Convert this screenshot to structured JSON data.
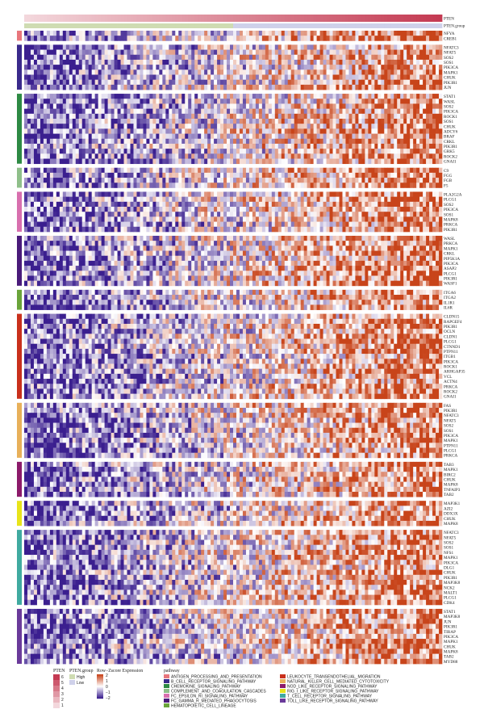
{
  "chart_data": {
    "type": "heatmap",
    "annotations": {
      "top_labels": [
        "PTEN",
        "PTEN.group"
      ],
      "pten_colors": [
        "#f3d7dc",
        "#c43a52"
      ],
      "group_colors": {
        "High": "#cfdcb2",
        "Low": "#cfd1ea"
      },
      "group_split_fraction": 0.5
    },
    "color_scale": {
      "low": "#3b1f8f",
      "mid": "#ffffff",
      "high": "#c8441a",
      "range": [
        -2,
        2
      ]
    },
    "blocks": [
      {
        "pathway": "ANTIGEN_PROCESSING_AND_PRESENTATION",
        "color": "#e8767c",
        "genes": [
          "NFYA",
          "CREB1"
        ]
      },
      {
        "pathway": "B_CELL_RECEPTOR_SIGNALING_PATHWAY",
        "color": "#3a2a8c",
        "genes": [
          "NFATC3",
          "NFAT5",
          "SOS2",
          "SOS1",
          "PIK3CA",
          "MAPK1",
          "CHUK",
          "PIK3R1",
          "JUN"
        ]
      },
      {
        "pathway": "CHEMOKINE_SIGNALING_PATHWAY",
        "color": "#2e8a44",
        "genes": [
          "STAT1",
          "WASL",
          "SOS2",
          "PIK3CA",
          "ROCK1",
          "SOS1",
          "CHUK",
          "ADCY6",
          "BRAF",
          "CRKL",
          "PIK3R1",
          "GRK5",
          "ROCK2",
          "GNAI1"
        ]
      },
      {
        "pathway": "COMPLEMENT_AND_COAGULATION_CASCADES",
        "color": "#8fbf8a",
        "genes": [
          "C9",
          "FGG",
          "FGB",
          "F5"
        ]
      },
      {
        "pathway": "FC_EPSILON_RI_SIGNALING_PATHWAY",
        "color": "#d86fae",
        "genes": [
          "PLA2G2A",
          "PLCG1",
          "SOS2",
          "PIK3CA",
          "SOS1",
          "MAPK8",
          "PRKCA",
          "PIK3R1"
        ]
      },
      {
        "pathway": "FC_GAMMA_R_MEDIATED_PHAGOCYTOSIS",
        "color": "#4a1a7a",
        "genes": [
          "WASL",
          "PRKCA",
          "MAPK1",
          "CRKL",
          "PIP5K1A",
          "PIK3CA",
          "ASAP2",
          "PLCG1",
          "PIK3R1",
          "WASF1"
        ]
      },
      {
        "pathway": "HEMATOPOIETIC_CELL_LINEAGE",
        "color": "#6aa43a",
        "genes": [
          "ITGA6",
          "ITGA2",
          "IL1R1",
          "IL6R"
        ]
      },
      {
        "pathway": "LEUKOCYTE_TRANSENDOTHELIAL_MIGRATION",
        "color": "#c9301c",
        "genes": [
          "CLDN15",
          "RAPGEF4",
          "PIK3R1",
          "OCLN",
          "CLDN1",
          "PLCG1",
          "CTNND1",
          "PTPN11",
          "ITGB1",
          "PIK3CA",
          "ROCK1",
          "ARHGAP35",
          "VCL",
          "ACTN4",
          "PRKCA",
          "ROCK2",
          "GNAI1"
        ]
      },
      {
        "pathway": "NATURAL_KILLER_CELL_MEDIATED_CYTOTOXICITY",
        "color": "#e8b05a",
        "genes": [
          "FAS",
          "PIK3R1",
          "NFATC3",
          "NFAT5",
          "SOS2",
          "SOS1",
          "PIK3CA",
          "MAPK1",
          "PTPN11",
          "PLCG1",
          "PRKCA"
        ]
      },
      {
        "pathway": "NOD_LIKE_RECEPTOR_SIGNALING_PATHWAY",
        "color": "#8c1a6a",
        "genes": [
          "TAB3",
          "MAPK1",
          "BIRC2",
          "CHUK",
          "MAPK8",
          "TNFAIP3",
          "TAB2"
        ]
      },
      {
        "pathway": "RIG_I_LIKE_RECEPTOR_SIGNALING_PATHWAY",
        "color": "#e8e41a",
        "genes": [
          "MAP3K1",
          "AZI2",
          "DDX3X",
          "CHUK",
          "MAPK8"
        ]
      },
      {
        "pathway": "T_CELL_RECEPTOR_SIGNALING_PATHWAY",
        "color": "#40aaa0",
        "genes": [
          "NFATC3",
          "NFAT5",
          "SOS2",
          "SOS1",
          "NFS1",
          "MAPK1",
          "PIK3CA",
          "DLG1",
          "CHUK",
          "PIK3R1",
          "MAP3K8",
          "NCK2",
          "MALT1",
          "PLCG1",
          "CDK4"
        ]
      },
      {
        "pathway": "TOLL_LIKE_RECEPTOR_SIGNALING_PATHWAY",
        "color": "#6a3a9a",
        "genes": [
          "STAT1",
          "MAP3K8",
          "JUN",
          "PIK3R1",
          "TIRAP",
          "PIK3CA",
          "MAPK1",
          "CHUK",
          "MAPK8",
          "TAB2",
          "MYD88"
        ]
      }
    ]
  },
  "legend": {
    "pten": {
      "title": "PTEN",
      "ticks": [
        "6",
        "5",
        "4",
        "3",
        "2",
        "1"
      ]
    },
    "group": {
      "title": "PTEN.group",
      "items": [
        "High",
        "Low"
      ]
    },
    "zscore": {
      "title": "Row−Zscore Expression",
      "ticks": [
        "2",
        "1",
        "0",
        "−1",
        "−2"
      ]
    },
    "pathway": {
      "title": "pathway"
    }
  }
}
